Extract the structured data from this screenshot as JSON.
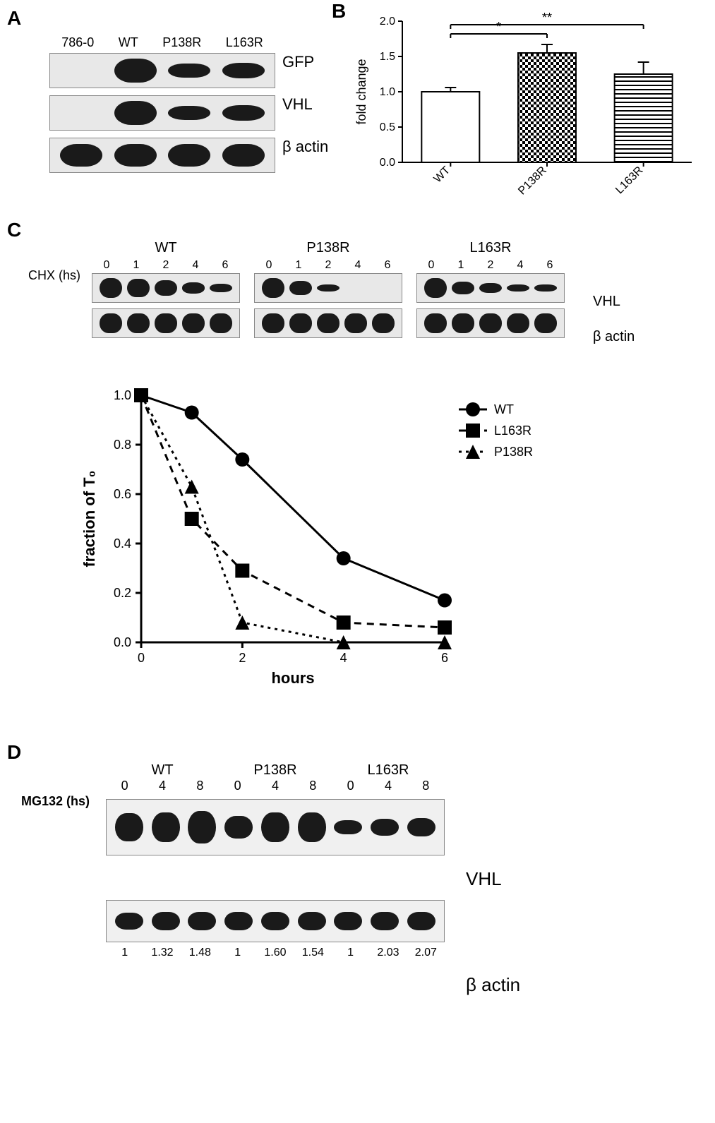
{
  "colors": {
    "background": "#ffffff",
    "text": "#000000",
    "band_dark": "#1a1a1a",
    "blot_bg": "#e8e8e8",
    "axis": "#000000",
    "bar_fill_WT": "#ffffff",
    "bar_fill_P138R_pattern": "checker",
    "bar_fill_L163R_pattern": "hstripe",
    "bar_stroke": "#000000"
  },
  "panelA": {
    "label": "A",
    "lanes": [
      "786-0",
      "WT",
      "P138R",
      "L163R"
    ],
    "rows": [
      "GFP",
      "VHL",
      "β actin"
    ],
    "band_intensity": {
      "GFP": [
        0.0,
        1.0,
        0.45,
        0.5
      ],
      "VHL": [
        0.0,
        1.0,
        0.4,
        0.5
      ],
      "bactin": [
        0.95,
        0.95,
        0.95,
        0.95
      ]
    }
  },
  "panelB": {
    "label": "B",
    "type": "bar",
    "ylabel": "fold change",
    "ylim": [
      0,
      2.0
    ],
    "ytick_step": 0.5,
    "categories": [
      "WT",
      "P138R",
      "L163R"
    ],
    "values": [
      1.0,
      1.55,
      1.25
    ],
    "errors": [
      0.06,
      0.12,
      0.17
    ],
    "bar_patterns": [
      "none",
      "checker",
      "hstripe"
    ],
    "bar_width": 0.6,
    "significance": [
      {
        "from": "WT",
        "to": "P138R",
        "label": "*",
        "y": 1.82
      },
      {
        "from": "WT",
        "to": "L163R",
        "label": "**",
        "y": 1.95
      }
    ],
    "axis_fontsize": 18,
    "tick_fontsize": 16,
    "title_fontsize": 0
  },
  "panelC": {
    "label": "C",
    "chx_label": "CHX (hs)",
    "groups": [
      "WT",
      "P138R",
      "L163R"
    ],
    "timepoints": [
      0,
      1,
      2,
      4,
      6
    ],
    "row_labels": [
      "VHL",
      "β actin"
    ],
    "vhl_intensity": {
      "WT": [
        1.0,
        0.93,
        0.74,
        0.34,
        0.17
      ],
      "P138R": [
        1.0,
        0.63,
        0.08,
        0.0,
        0.0
      ],
      "L163R": [
        1.0,
        0.5,
        0.29,
        0.08,
        0.06
      ]
    },
    "bactin_intensity": [
      0.95,
      0.95,
      0.95,
      0.95,
      0.95
    ],
    "decay_chart": {
      "type": "line",
      "xlabel": "hours",
      "ylabel": "fraction of T₀",
      "xlim": [
        0,
        6
      ],
      "ylim": [
        0,
        1.0
      ],
      "xticks": [
        0,
        2,
        4,
        6
      ],
      "yticks": [
        0.0,
        0.2,
        0.4,
        0.6,
        0.8,
        1.0
      ],
      "x_values": [
        0,
        1,
        2,
        4,
        6
      ],
      "series": [
        {
          "name": "WT",
          "marker": "circle",
          "dash": "solid",
          "y": [
            1.0,
            0.93,
            0.74,
            0.34,
            0.17
          ]
        },
        {
          "name": "L163R",
          "marker": "square",
          "dash": "dash",
          "y": [
            1.0,
            0.5,
            0.29,
            0.08,
            0.06
          ]
        },
        {
          "name": "P138R",
          "marker": "triangle",
          "dash": "dot",
          "y": [
            1.0,
            0.63,
            0.08,
            0.0,
            0.0
          ]
        }
      ],
      "line_width": 3,
      "marker_size": 10,
      "line_color": "#000000",
      "axis_fontsize": 22,
      "tick_fontsize": 18,
      "legend_fontsize": 18,
      "legend_pos": "right"
    }
  },
  "panelD": {
    "label": "D",
    "mg_label": "MG132 (hs)",
    "groups": [
      "WT",
      "P138R",
      "L163R"
    ],
    "timepoints": [
      0,
      4,
      8
    ],
    "row_labels": [
      "VHL",
      "β actin"
    ],
    "vhl_intensity": {
      "WT": [
        0.8,
        0.9,
        1.0
      ],
      "P138R": [
        0.55,
        0.9,
        0.85
      ],
      "L163R": [
        0.2,
        0.3,
        0.4
      ]
    },
    "bactin_intensity": [
      0.75,
      0.85,
      0.85,
      0.85,
      0.85,
      0.85,
      0.85,
      0.85,
      0.85
    ],
    "quant": [
      "1",
      "1.32",
      "1.48",
      "1",
      "1.60",
      "1.54",
      "1",
      "2.03",
      "2.07"
    ]
  }
}
